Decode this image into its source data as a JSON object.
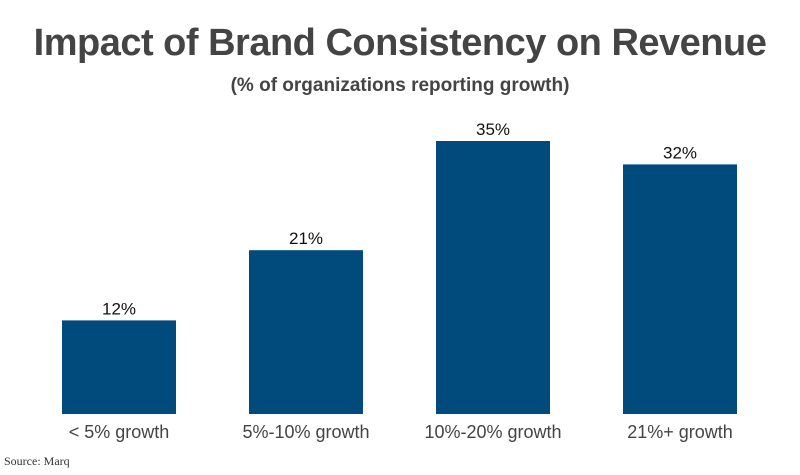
{
  "chart_data": {
    "type": "bar",
    "title": "Impact of Brand Consistency on Revenue",
    "subtitle": "(% of organizations reporting growth)",
    "categories": [
      "< 5% growth",
      "5%-10% growth",
      "10%-20% growth",
      "21%+ growth"
    ],
    "values": [
      12,
      21,
      35,
      32
    ],
    "data_labels": [
      "12%",
      "21%",
      "35%",
      "32%"
    ],
    "xlabel": "",
    "ylabel": "",
    "ylim": [
      0,
      35
    ],
    "grid": false,
    "legend": "none",
    "bar_color": "#004a7c",
    "source": "Source: Marq"
  }
}
